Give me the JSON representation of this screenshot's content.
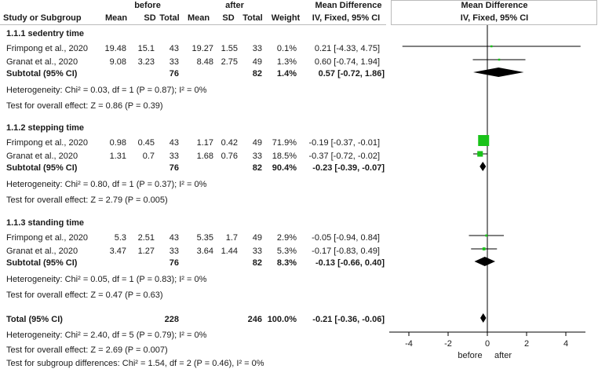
{
  "chart_data": {
    "type": "forest",
    "header": {
      "group1": "before",
      "group2": "after",
      "effect_title": "Mean Difference",
      "plot_title": "Mean Difference",
      "study": "Study or Subgroup",
      "mean1": "Mean",
      "sd1": "SD",
      "n1": "Total",
      "mean2": "Mean",
      "sd2": "SD",
      "n2": "Total",
      "weight": "Weight",
      "effect_method": "IV, Fixed, 95% CI",
      "plot_method": "IV, Fixed, 95% CI"
    },
    "subgroups": [
      {
        "title": "1.1.1 sedentry time",
        "studies": [
          {
            "name": "Frimpong et al., 2020",
            "mean1": 19.48,
            "sd1": 15.1,
            "n1": 43,
            "mean2": 19.27,
            "sd2": 1.55,
            "n2": 33,
            "weight": 0.1,
            "weight_label": "0.1%",
            "md": 0.21,
            "ci_low": -4.33,
            "ci_high": 4.75,
            "md_label": "0.21 [-4.33, 4.75]"
          },
          {
            "name": "Granat et al., 2020",
            "mean1": 9.08,
            "sd1": 3.23,
            "n1": 33,
            "mean2": 8.48,
            "sd2": 2.75,
            "n2": 49,
            "weight": 1.3,
            "weight_label": "1.3%",
            "md": 0.6,
            "ci_low": -0.74,
            "ci_high": 1.94,
            "md_label": "0.60 [-0.74, 1.94]"
          }
        ],
        "subtotal": {
          "label": "Subtotal (95% CI)",
          "n1": 76,
          "n2": 82,
          "weight": 1.4,
          "weight_label": "1.4%",
          "md": 0.57,
          "ci_low": -0.72,
          "ci_high": 1.86,
          "md_label": "0.57 [-0.72, 1.86]"
        },
        "heterogeneity": "Heterogeneity: Chi² = 0.03, df = 1 (P = 0.87); I² = 0%",
        "overall_effect": "Test for overall effect: Z = 0.86 (P = 0.39)"
      },
      {
        "title": "1.1.2 stepping time",
        "studies": [
          {
            "name": "Frimpong et al., 2020",
            "mean1": 0.98,
            "sd1": 0.45,
            "n1": 43,
            "mean2": 1.17,
            "sd2": 0.42,
            "n2": 49,
            "weight": 71.9,
            "weight_label": "71.9%",
            "md": -0.19,
            "ci_low": -0.37,
            "ci_high": -0.01,
            "md_label": "-0.19 [-0.37, -0.01]"
          },
          {
            "name": "Granat et al., 2020",
            "mean1": 1.31,
            "sd1": 0.7,
            "n1": 33,
            "mean2": 1.68,
            "sd2": 0.76,
            "n2": 33,
            "weight": 18.5,
            "weight_label": "18.5%",
            "md": -0.37,
            "ci_low": -0.72,
            "ci_high": -0.02,
            "md_label": "-0.37 [-0.72, -0.02]"
          }
        ],
        "subtotal": {
          "label": "Subtotal (95% CI)",
          "n1": 76,
          "n2": 82,
          "weight": 90.4,
          "weight_label": "90.4%",
          "md": -0.23,
          "ci_low": -0.39,
          "ci_high": -0.07,
          "md_label": "-0.23 [-0.39, -0.07]"
        },
        "heterogeneity": "Heterogeneity: Chi² = 0.80, df = 1 (P = 0.37); I² = 0%",
        "overall_effect": "Test for overall effect: Z = 2.79 (P = 0.005)"
      },
      {
        "title": "1.1.3 standing time",
        "studies": [
          {
            "name": "Frimpong et al., 2020",
            "mean1": 5.3,
            "sd1": 2.51,
            "n1": 43,
            "mean2": 5.35,
            "sd2": 1.7,
            "n2": 49,
            "weight": 2.9,
            "weight_label": "2.9%",
            "md": -0.05,
            "ci_low": -0.94,
            "ci_high": 0.84,
            "md_label": "-0.05 [-0.94, 0.84]"
          },
          {
            "name": "Granat et al., 2020",
            "mean1": 3.47,
            "sd1": 1.27,
            "n1": 33,
            "mean2": 3.64,
            "sd2": 1.44,
            "n2": 33,
            "weight": 5.3,
            "weight_label": "5.3%",
            "md": -0.17,
            "ci_low": -0.83,
            "ci_high": 0.49,
            "md_label": "-0.17 [-0.83, 0.49]"
          }
        ],
        "subtotal": {
          "label": "Subtotal (95% CI)",
          "n1": 76,
          "n2": 82,
          "weight": 8.3,
          "weight_label": "8.3%",
          "md": -0.13,
          "ci_low": -0.66,
          "ci_high": 0.4,
          "md_label": "-0.13 [-0.66, 0.40]"
        },
        "heterogeneity": "Heterogeneity: Chi² = 0.05, df = 1 (P = 0.83); I² = 0%",
        "overall_effect": "Test for overall effect: Z = 0.47 (P = 0.63)"
      }
    ],
    "total": {
      "label": "Total (95% CI)",
      "n1": 228,
      "n2": 246,
      "weight": 100,
      "weight_label": "100.0%",
      "md": -0.21,
      "ci_low": -0.36,
      "ci_high": -0.06,
      "md_label": "-0.21 [-0.36, -0.06]",
      "heterogeneity": "Heterogeneity: Chi² = 2.40, df = 5 (P = 0.79); I² = 0%",
      "overall_effect": "Test for overall effect: Z = 2.69 (P = 0.007)",
      "subgroup_differences": "Test for subgroup differences: Chi² = 1.54, df = 2 (P = 0.46), I² = 0%"
    },
    "xlim": [
      -5,
      5
    ],
    "xticks": [
      -4,
      -2,
      0,
      2,
      4
    ],
    "ref_line": 0,
    "favours": [
      "before",
      "after"
    ],
    "study_color": "#19c219",
    "summary_color": "#000000"
  }
}
